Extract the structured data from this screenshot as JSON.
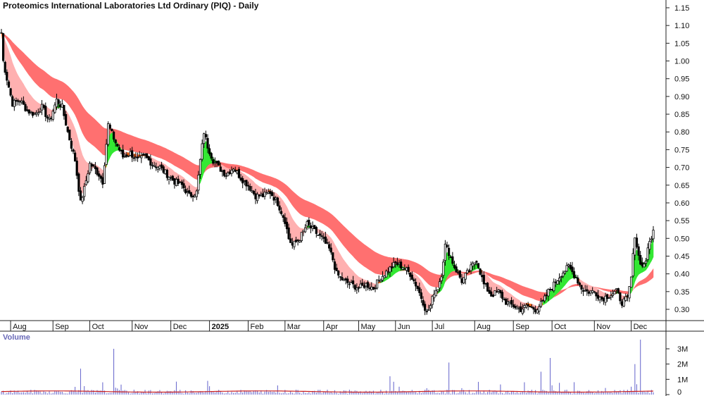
{
  "colors": {
    "background": "#ffffff",
    "axis": "#222222",
    "long_ribbon": "#ff7070",
    "short_ribbon_bearish": "#ffb0b0",
    "short_ribbon_transition": "#ff6a1a",
    "short_ribbon_bullish": "#33e833",
    "candle": "#000000",
    "volume_bar": "#7070d0",
    "volume_average": "#cc2222",
    "volume_label": "#6a6ab8"
  },
  "chart_data": [
    {
      "type": "candlestick",
      "title": "Proteomics International Laboratories Ltd Ordinary (PIQ) - Daily",
      "y_axis_side": "right",
      "ylim": [
        0.25,
        1.17
      ],
      "yticks": [
        "1.15",
        "1.10",
        "1.05",
        "1.00",
        "0.95",
        "0.90",
        "0.85",
        "0.80",
        "0.75",
        "0.70",
        "0.65",
        "0.60",
        "0.55",
        "0.50",
        "0.45",
        "0.40",
        "0.35",
        "0.30"
      ],
      "ytick_values": [
        1.15,
        1.1,
        1.05,
        1.0,
        0.95,
        0.9,
        0.85,
        0.8,
        0.75,
        0.7,
        0.65,
        0.6,
        0.55,
        0.5,
        0.45,
        0.4,
        0.35,
        0.3
      ],
      "x_axis": {
        "unit": "trading days",
        "labels": [
          {
            "label": "Aug",
            "day": 5
          },
          {
            "label": "Sep",
            "day": 28
          },
          {
            "label": "Oct",
            "day": 48
          },
          {
            "label": "Nov",
            "day": 71
          },
          {
            "label": "Dec",
            "day": 92
          },
          {
            "label": "2025",
            "day": 113
          },
          {
            "label": "Feb",
            "day": 134
          },
          {
            "label": "Mar",
            "day": 154
          },
          {
            "label": "Apr",
            "day": 175
          },
          {
            "label": "May",
            "day": 194
          },
          {
            "label": "Jun",
            "day": 214
          },
          {
            "label": "Jul",
            "day": 234
          },
          {
            "label": "Aug",
            "day": 257
          },
          {
            "label": "Sep",
            "day": 278
          },
          {
            "label": "Oct",
            "day": 299
          },
          {
            "label": "Nov",
            "day": 322
          },
          {
            "label": "Dec",
            "day": 342
          }
        ],
        "last_day": 354
      },
      "close_path": [
        [
          0,
          1.08
        ],
        [
          1,
          1.0
        ],
        [
          3,
          0.95
        ],
        [
          6,
          0.88
        ],
        [
          10,
          0.89
        ],
        [
          14,
          0.86
        ],
        [
          18,
          0.85
        ],
        [
          22,
          0.87
        ],
        [
          26,
          0.83
        ],
        [
          30,
          0.89
        ],
        [
          33,
          0.87
        ],
        [
          36,
          0.8
        ],
        [
          40,
          0.72
        ],
        [
          43,
          0.6
        ],
        [
          45,
          0.64
        ],
        [
          48,
          0.71
        ],
        [
          50,
          0.7
        ],
        [
          53,
          0.68
        ],
        [
          55,
          0.66
        ],
        [
          58,
          0.82
        ],
        [
          62,
          0.77
        ],
        [
          66,
          0.73
        ],
        [
          70,
          0.74
        ],
        [
          74,
          0.72
        ],
        [
          78,
          0.73
        ],
        [
          82,
          0.71
        ],
        [
          86,
          0.7
        ],
        [
          90,
          0.68
        ],
        [
          94,
          0.66
        ],
        [
          98,
          0.65
        ],
        [
          102,
          0.62
        ],
        [
          106,
          0.63
        ],
        [
          108,
          0.72
        ],
        [
          110,
          0.8
        ],
        [
          112,
          0.76
        ],
        [
          115,
          0.72
        ],
        [
          118,
          0.7
        ],
        [
          122,
          0.68
        ],
        [
          126,
          0.7
        ],
        [
          130,
          0.67
        ],
        [
          134,
          0.65
        ],
        [
          138,
          0.62
        ],
        [
          142,
          0.62
        ],
        [
          146,
          0.63
        ],
        [
          150,
          0.6
        ],
        [
          154,
          0.55
        ],
        [
          156,
          0.5
        ],
        [
          158,
          0.48
        ],
        [
          162,
          0.5
        ],
        [
          166,
          0.54
        ],
        [
          170,
          0.52
        ],
        [
          174,
          0.5
        ],
        [
          178,
          0.47
        ],
        [
          180,
          0.44
        ],
        [
          182,
          0.4
        ],
        [
          186,
          0.38
        ],
        [
          190,
          0.37
        ],
        [
          194,
          0.36
        ],
        [
          198,
          0.37
        ],
        [
          202,
          0.36
        ],
        [
          206,
          0.39
        ],
        [
          210,
          0.41
        ],
        [
          214,
          0.43
        ],
        [
          218,
          0.42
        ],
        [
          222,
          0.4
        ],
        [
          226,
          0.36
        ],
        [
          229,
          0.32
        ],
        [
          231,
          0.29
        ],
        [
          233,
          0.31
        ],
        [
          235,
          0.35
        ],
        [
          237,
          0.36
        ],
        [
          239,
          0.4
        ],
        [
          241,
          0.48
        ],
        [
          243,
          0.46
        ],
        [
          246,
          0.42
        ],
        [
          250,
          0.38
        ],
        [
          254,
          0.41
        ],
        [
          258,
          0.44
        ],
        [
          262,
          0.37
        ],
        [
          266,
          0.34
        ],
        [
          270,
          0.35
        ],
        [
          274,
          0.32
        ],
        [
          278,
          0.31
        ],
        [
          282,
          0.3
        ],
        [
          286,
          0.31
        ],
        [
          290,
          0.3
        ],
        [
          294,
          0.32
        ],
        [
          297,
          0.35
        ],
        [
          300,
          0.37
        ],
        [
          304,
          0.4
        ],
        [
          308,
          0.42
        ],
        [
          312,
          0.39
        ],
        [
          315,
          0.36
        ],
        [
          318,
          0.35
        ],
        [
          322,
          0.35
        ],
        [
          326,
          0.33
        ],
        [
          330,
          0.34
        ],
        [
          334,
          0.35
        ],
        [
          337,
          0.32
        ],
        [
          340,
          0.33
        ],
        [
          342,
          0.39
        ],
        [
          344,
          0.51
        ],
        [
          346,
          0.45
        ],
        [
          348,
          0.42
        ],
        [
          350,
          0.44
        ],
        [
          352,
          0.49
        ],
        [
          354,
          0.52
        ]
      ],
      "price_range": {
        "high": 1.1,
        "low": 0.29,
        "last": 0.52
      },
      "moving_average_ribbons": [
        {
          "kind": "long-term",
          "color": "#ff7070"
        },
        {
          "kind": "short-term",
          "color": "#ffb0b0"
        }
      ]
    },
    {
      "type": "bar",
      "title": "Volume",
      "y_axis_side": "right",
      "ylim": [
        0,
        3600000
      ],
      "yticks": [
        "3M",
        "2M",
        "1M",
        "0"
      ],
      "ytick_values": [
        3000000,
        2000000,
        1000000,
        0
      ],
      "average_line_value": 200000,
      "notable_spikes": [
        {
          "day": 43,
          "value": 1700000
        },
        {
          "day": 61,
          "value": 3000000
        },
        {
          "day": 112,
          "value": 900000
        },
        {
          "day": 211,
          "value": 1200000
        },
        {
          "day": 243,
          "value": 2100000
        },
        {
          "day": 293,
          "value": 1500000
        },
        {
          "day": 298,
          "value": 2400000
        },
        {
          "day": 344,
          "value": 2000000
        },
        {
          "day": 347,
          "value": 3600000
        }
      ]
    }
  ]
}
